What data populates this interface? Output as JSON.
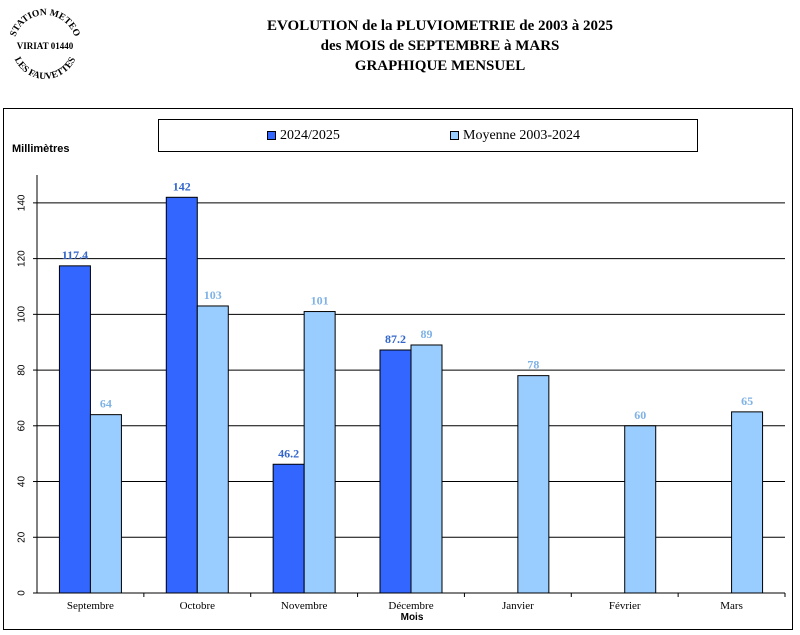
{
  "stamp": {
    "top_text": "STATION METEO",
    "middle_text": "VIRIAT 01440",
    "bottom_text": "LES FAUVETTES"
  },
  "title": {
    "line1": "EVOLUTION de la PLUVIOMETRIE de 2003 à 2025",
    "line2": "des MOIS de SEPTEMBRE à MARS",
    "line3": "GRAPHIQUE MENSUEL"
  },
  "chart_data": {
    "type": "bar",
    "title": "EVOLUTION de la PLUVIOMETRIE de 2003 à 2025 des MOIS de SEPTEMBRE à MARS GRAPHIQUE MENSUEL",
    "ylabel": "Millimètres",
    "xlabel": "Mois",
    "ylim": [
      0,
      150
    ],
    "yticks": [
      0,
      20,
      40,
      60,
      80,
      100,
      120,
      140
    ],
    "grid": true,
    "legend_position": "top",
    "categories": [
      "Septembre",
      "Octobre",
      "Novembre",
      "Décembre",
      "Janvier",
      "Février",
      "Mars"
    ],
    "series": [
      {
        "name": "2024/2025",
        "color": "#3366FF",
        "label_color": "#3366CC",
        "values": [
          117.4,
          142,
          46.2,
          87.2,
          null,
          null,
          null
        ],
        "labels": [
          "117.4",
          "142",
          "46.2",
          "87.2",
          "",
          "",
          ""
        ]
      },
      {
        "name": "Moyenne 2003-2024",
        "color": "#99CCFF",
        "label_color": "#7FB2E5",
        "values": [
          64,
          103,
          101,
          89,
          78,
          60,
          65
        ],
        "labels": [
          "64",
          "103",
          "101",
          "89",
          "78",
          "60",
          "65"
        ]
      }
    ]
  }
}
